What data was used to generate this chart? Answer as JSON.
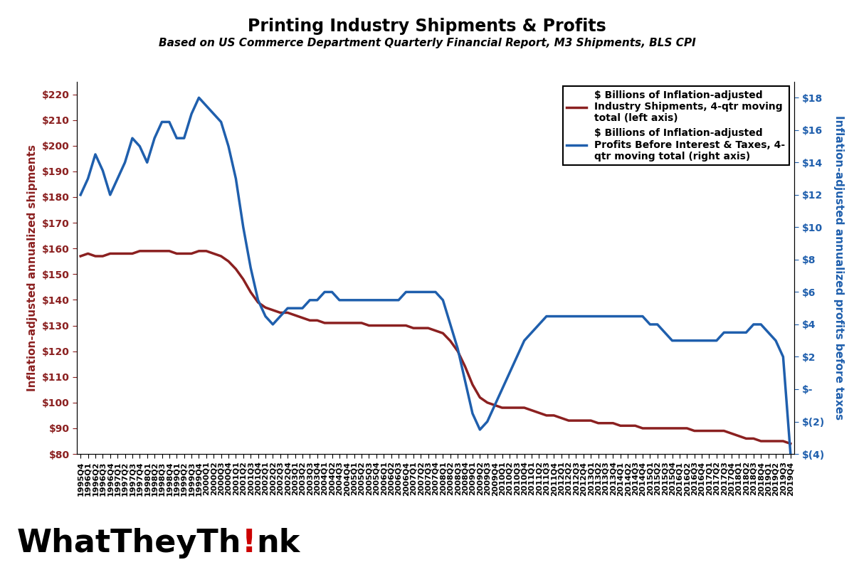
{
  "title": "Printing Industry Shipments & Profits",
  "subtitle": "Based on US Commerce Department Quarterly Financial Report, M3 Shipments, BLS CPI",
  "ylabel_left": "Inflation-adjusted annualized shipments",
  "ylabel_right": "Inflation-adjusted annualized profits before taxes",
  "left_color": "#8B2020",
  "right_color": "#1F5FAD",
  "ylim_left": [
    80,
    225
  ],
  "ylim_right": [
    -4,
    19
  ],
  "yticks_left": [
    80,
    90,
    100,
    110,
    120,
    130,
    140,
    150,
    160,
    170,
    180,
    190,
    200,
    210,
    220
  ],
  "yticks_right": [
    -4,
    -2,
    0,
    2,
    4,
    6,
    8,
    10,
    12,
    14,
    16,
    18
  ],
  "quarters": [
    "1995Q4",
    "1996Q1",
    "1996Q2",
    "1996Q3",
    "1996Q4",
    "1997Q1",
    "1997Q2",
    "1997Q3",
    "1997Q4",
    "1998Q1",
    "1998Q2",
    "1998Q3",
    "1998Q4",
    "1999Q1",
    "1999Q2",
    "1999Q3",
    "1999Q4",
    "2000Q1",
    "2000Q2",
    "2000Q3",
    "2000Q4",
    "2001Q1",
    "2001Q2",
    "2001Q3",
    "2001Q4",
    "2002Q1",
    "2002Q2",
    "2002Q3",
    "2002Q4",
    "2003Q1",
    "2003Q2",
    "2003Q3",
    "2003Q4",
    "2004Q1",
    "2004Q2",
    "2004Q3",
    "2004Q4",
    "2005Q1",
    "2005Q2",
    "2005Q3",
    "2005Q4",
    "2006Q1",
    "2006Q2",
    "2006Q3",
    "2006Q4",
    "2007Q1",
    "2007Q2",
    "2007Q3",
    "2007Q4",
    "2008Q1",
    "2008Q2",
    "2008Q3",
    "2008Q4",
    "2009Q1",
    "2009Q2",
    "2009Q3",
    "2009Q4",
    "2010Q1",
    "2010Q2",
    "2010Q3",
    "2010Q4",
    "2011Q1",
    "2011Q2",
    "2011Q3",
    "2011Q4",
    "2012Q1",
    "2012Q2",
    "2012Q3",
    "2012Q4",
    "2013Q1",
    "2013Q2",
    "2013Q3",
    "2013Q4",
    "2014Q1",
    "2014Q2",
    "2014Q3",
    "2014Q4",
    "2015Q1",
    "2015Q2",
    "2015Q3",
    "2015Q4",
    "2016Q1",
    "2016Q2",
    "2016Q3",
    "2016Q4",
    "2017Q1",
    "2017Q2",
    "2017Q3",
    "2017Q4",
    "2018Q1",
    "2018Q2",
    "2018Q3",
    "2018Q4",
    "2019Q1",
    "2019Q2",
    "2019Q3",
    "2019Q4"
  ],
  "shipments": [
    157,
    158,
    157,
    157,
    158,
    158,
    158,
    158,
    159,
    159,
    159,
    159,
    159,
    158,
    158,
    158,
    159,
    159,
    158,
    157,
    155,
    152,
    148,
    143,
    139,
    137,
    136,
    135,
    135,
    134,
    133,
    132,
    132,
    131,
    131,
    131,
    131,
    131,
    131,
    130,
    130,
    130,
    130,
    130,
    130,
    129,
    129,
    129,
    128,
    127,
    124,
    120,
    114,
    107,
    102,
    100,
    99,
    98,
    98,
    98,
    98,
    97,
    96,
    95,
    95,
    94,
    93,
    93,
    93,
    93,
    92,
    92,
    92,
    91,
    91,
    91,
    90,
    90,
    90,
    90,
    90,
    90,
    90,
    89,
    89,
    89,
    89,
    89,
    88,
    87,
    86,
    86,
    85,
    85,
    85,
    85,
    84
  ],
  "profits": [
    12,
    13,
    14.5,
    13.5,
    12,
    13,
    14,
    15.5,
    15,
    14,
    15.5,
    16.5,
    16.5,
    15.5,
    15.5,
    17,
    18,
    17.5,
    17,
    16.5,
    15,
    13,
    10,
    7.5,
    5.5,
    4.5,
    4,
    4.5,
    5,
    5,
    5,
    5.5,
    5.5,
    6,
    6,
    5.5,
    5.5,
    5.5,
    5.5,
    5.5,
    5.5,
    5.5,
    5.5,
    5.5,
    6,
    6,
    6,
    6,
    6,
    5.5,
    4,
    2.5,
    0.5,
    -1.5,
    -2.5,
    -2,
    -1,
    0,
    1,
    2,
    3,
    3.5,
    4,
    4.5,
    4.5,
    4.5,
    4.5,
    4.5,
    4.5,
    4.5,
    4.5,
    4.5,
    4.5,
    4.5,
    4.5,
    4.5,
    4.5,
    4,
    4,
    3.5,
    3,
    3,
    3,
    3,
    3,
    3,
    3,
    3.5,
    3.5,
    3.5,
    3.5,
    4,
    4,
    3.5,
    3,
    2,
    -4
  ],
  "legend_label_left": "$ Billions of Inflation-adjusted\nIndustry Shipments, 4-qtr moving\ntotal (left axis)",
  "legend_label_right": "$ Billions of Inflation-adjusted\nProfits Before Interest & Taxes, 4-\nqtr moving total (right axis)",
  "background_color": "#FFFFFF",
  "watermark_color_main": "#000000",
  "watermark_color_exclaim": "#CC0000"
}
